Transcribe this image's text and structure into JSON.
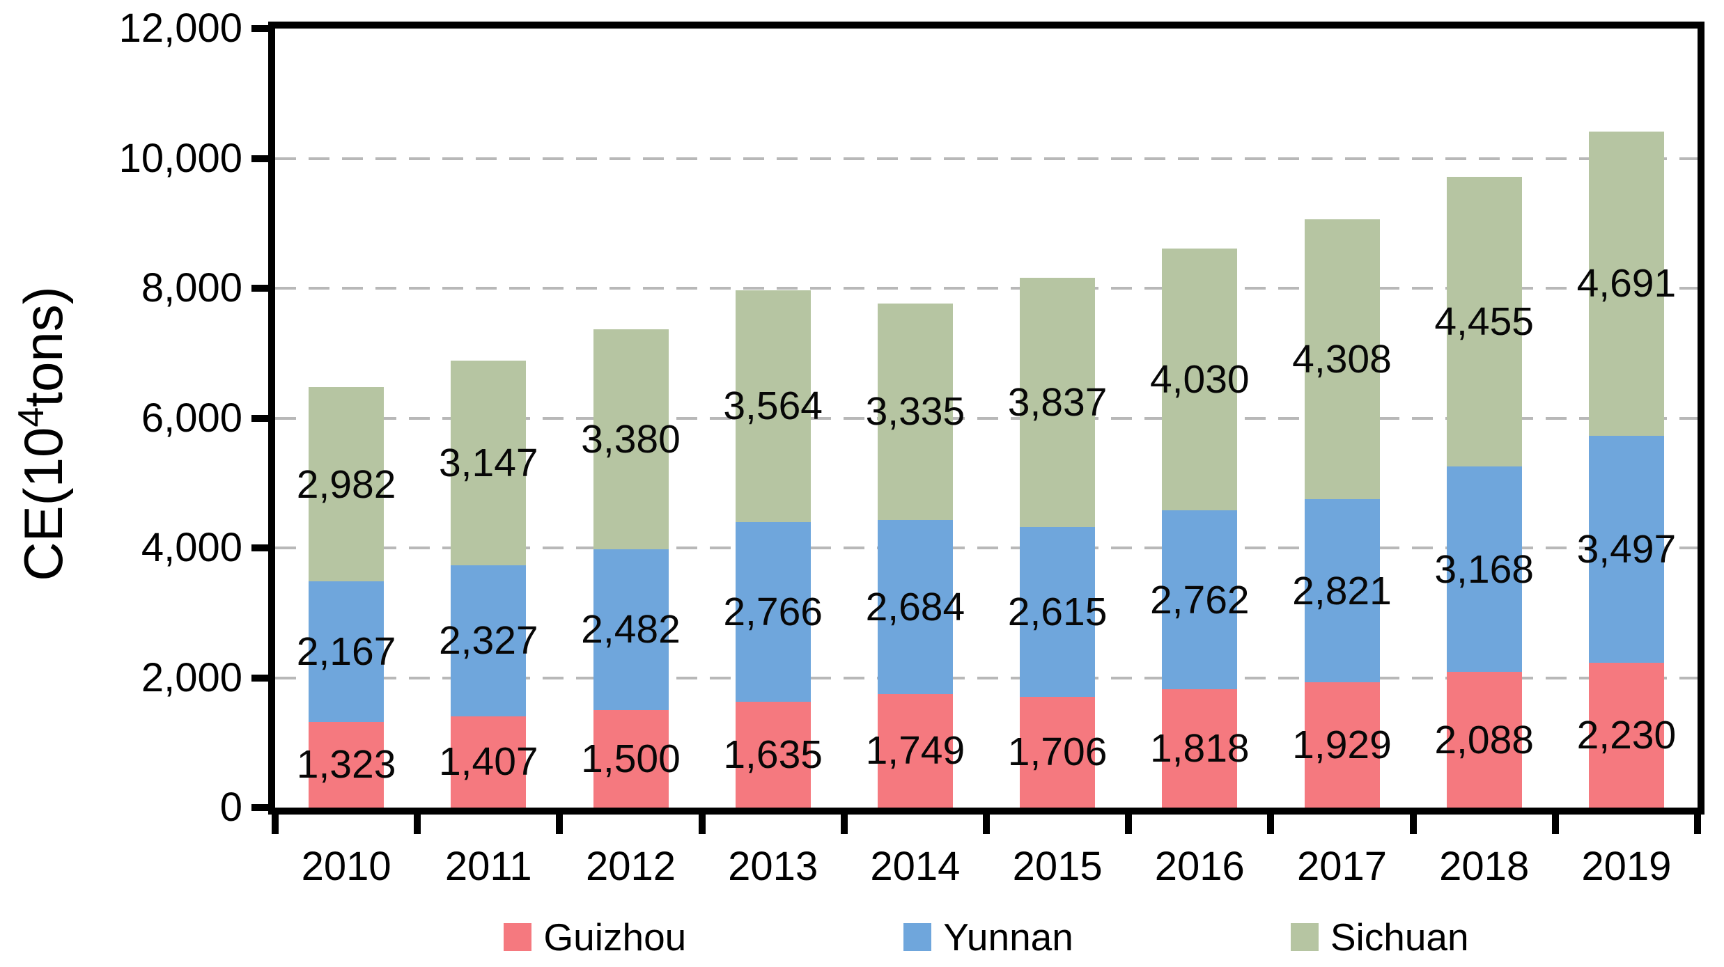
{
  "chart_data": {
    "type": "bar",
    "stacked": true,
    "categories": [
      "2010",
      "2011",
      "2012",
      "2013",
      "2014",
      "2015",
      "2016",
      "2017",
      "2018",
      "2019"
    ],
    "series": [
      {
        "name": "Guizhou",
        "color": "#F5797F",
        "values": [
          1323,
          1407,
          1500,
          1635,
          1749,
          1706,
          1818,
          1929,
          2088,
          2230
        ]
      },
      {
        "name": "Yunnan",
        "color": "#6FA6DC",
        "values": [
          2167,
          2327,
          2482,
          2766,
          2684,
          2615,
          2762,
          2821,
          3168,
          3497
        ]
      },
      {
        "name": "Sichuan",
        "color": "#B6C5A2",
        "values": [
          2982,
          3147,
          3380,
          3564,
          3335,
          3837,
          4030,
          4308,
          4455,
          4691
        ]
      }
    ],
    "ylabel_text": "CE(10⁴tons)",
    "ylabel_parts": {
      "prefix": "CE(10",
      "superscript": "4",
      "suffix": "tons)"
    },
    "ylim": [
      0,
      12000
    ],
    "ytick_step": 2000,
    "ytick_labels": [
      "0",
      "2,000",
      "4,000",
      "6,000",
      "8,000",
      "10,000",
      "12,000"
    ],
    "grid": "horizontal-dashed",
    "legend_position": "bottom",
    "colors": {
      "axis": "#000000",
      "gridline": "#b8b8b8",
      "label_text": "#070707",
      "background": "#ffffff"
    }
  }
}
